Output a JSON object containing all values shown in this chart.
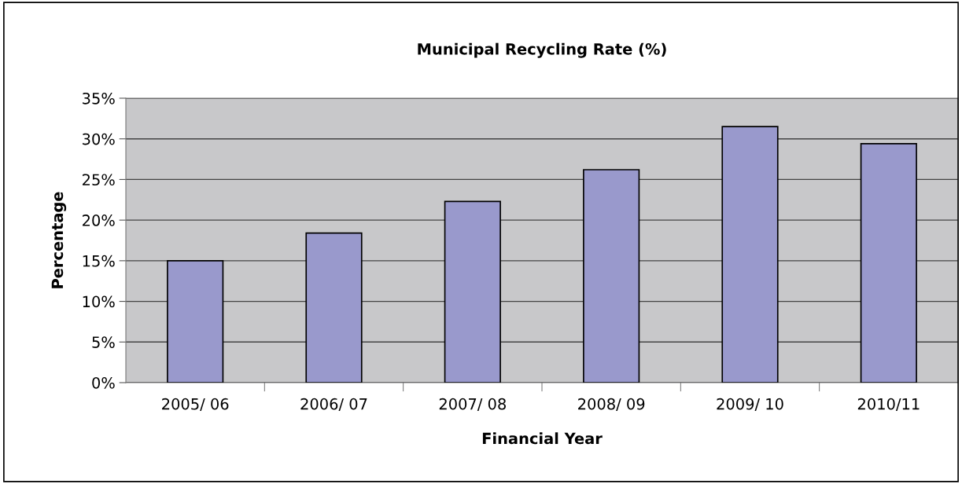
{
  "chart_data": {
    "type": "bar",
    "title": "Municipal Recycling Rate (%)",
    "xlabel": "Financial Year",
    "ylabel": "Percentage",
    "categories": [
      "2005/ 06",
      "2006/ 07",
      "2007/ 08",
      "2008/ 09",
      "2009/ 10",
      "2010/11"
    ],
    "values": [
      15.0,
      18.4,
      22.3,
      26.2,
      31.5,
      29.4
    ],
    "color": "#9999cc",
    "ylim": [
      0,
      35
    ],
    "yticks": [
      {
        "value": 0,
        "label": "0%"
      },
      {
        "value": 5,
        "label": "5%"
      },
      {
        "value": 10,
        "label": "10%"
      },
      {
        "value": 15,
        "label": "15%"
      },
      {
        "value": 20,
        "label": "20%"
      },
      {
        "value": 25,
        "label": "25%"
      },
      {
        "value": 30,
        "label": "30%"
      },
      {
        "value": 35,
        "label": "35%"
      }
    ],
    "grid": "y"
  }
}
